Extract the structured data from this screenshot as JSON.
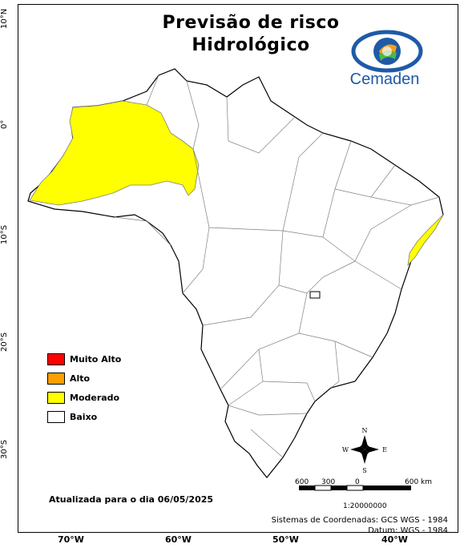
{
  "title_line1": "Previsão de risco",
  "title_line2": "Hidrológico",
  "logo_text": "Cemaden",
  "legend": [
    {
      "label": "Muito Alto",
      "color": "#ff0000"
    },
    {
      "label": "Alto",
      "color": "#ff9e00"
    },
    {
      "label": "Moderado",
      "color": "#ffff00"
    },
    {
      "label": "Baixo",
      "color": "#ffffff"
    }
  ],
  "updated_text": "Atualizada para o dia 06/05/2025",
  "coord_system": "Sistemas de Coordenadas: GCS WGS - 1984",
  "datum": "Datum: WGS - 1984",
  "scale_bar": {
    "labels": [
      "600",
      "300",
      "0",
      "600 km"
    ],
    "ratio": "1:20000000"
  },
  "compass": {
    "n": "N",
    "s": "S",
    "e": "E",
    "w": "W"
  },
  "y_axis_labels": [
    "10°N",
    "0°",
    "10°S",
    "20°S",
    "30°S"
  ],
  "x_axis_labels": [
    "70°W",
    "60°W",
    "50°W",
    "40°W"
  ],
  "map_colors": {
    "low_fill": "#ffffff",
    "moderate_fill": "#ffff00",
    "border": "#808080",
    "outline": "#000000",
    "logo_blue": "#1e5aa8"
  }
}
